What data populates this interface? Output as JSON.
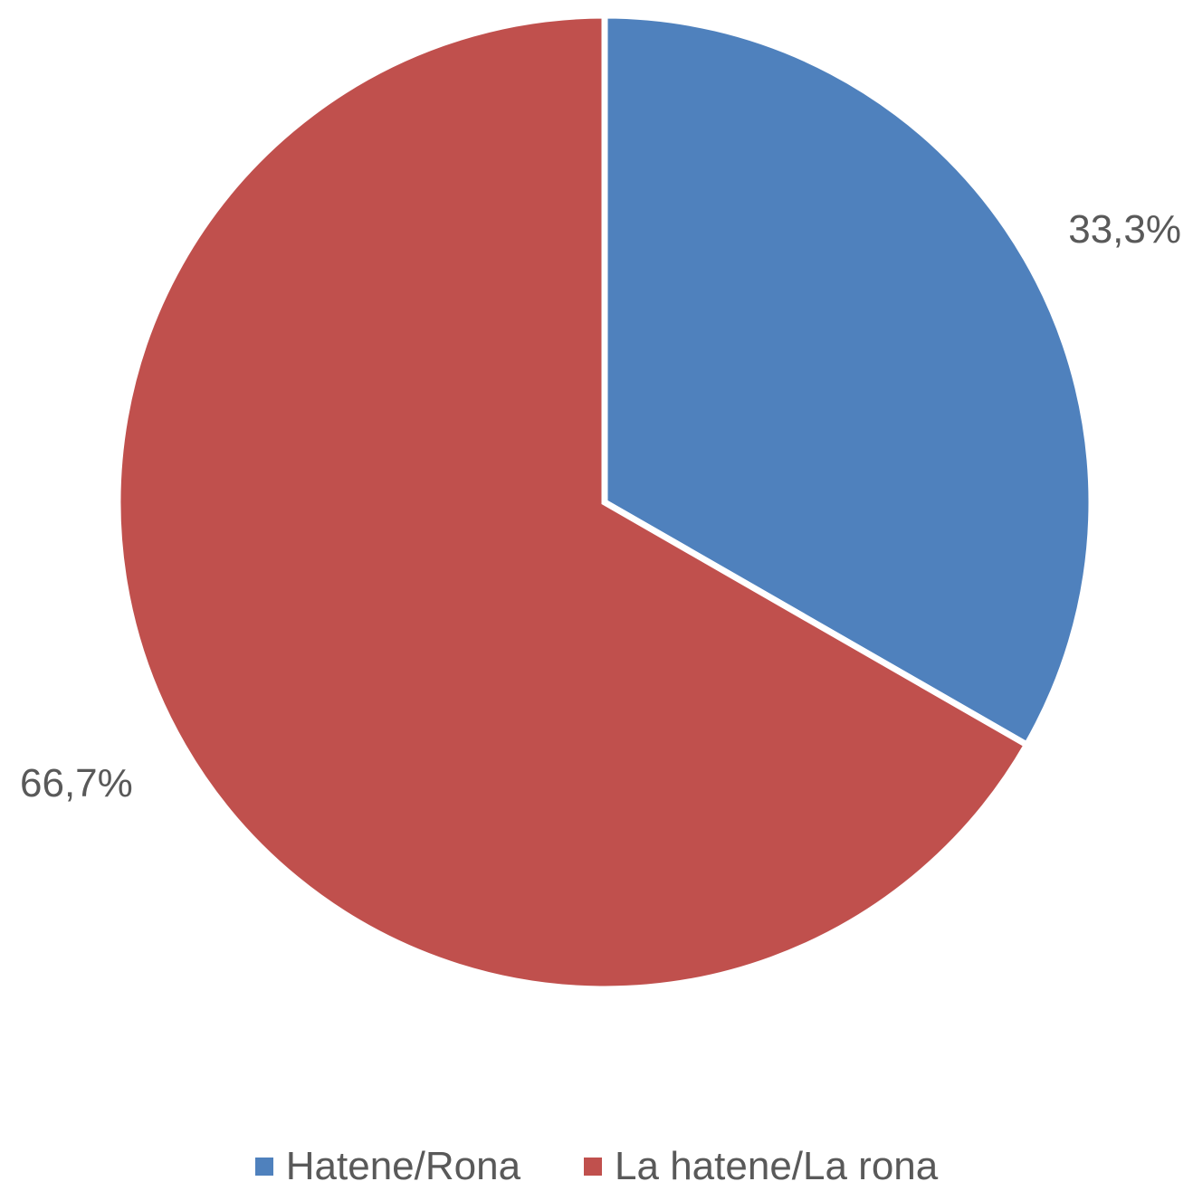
{
  "chart_data": {
    "type": "pie",
    "title": "",
    "categories": [
      "Hatene/Rona",
      "La hatene/La rona"
    ],
    "values": [
      33.3,
      66.7
    ],
    "data_labels": [
      "33,3%",
      "66,7%"
    ],
    "colors": [
      "#4F81BD",
      "#C0504D"
    ],
    "legend_position": "bottom",
    "start_angle": "12 o'clock, clockwise"
  }
}
